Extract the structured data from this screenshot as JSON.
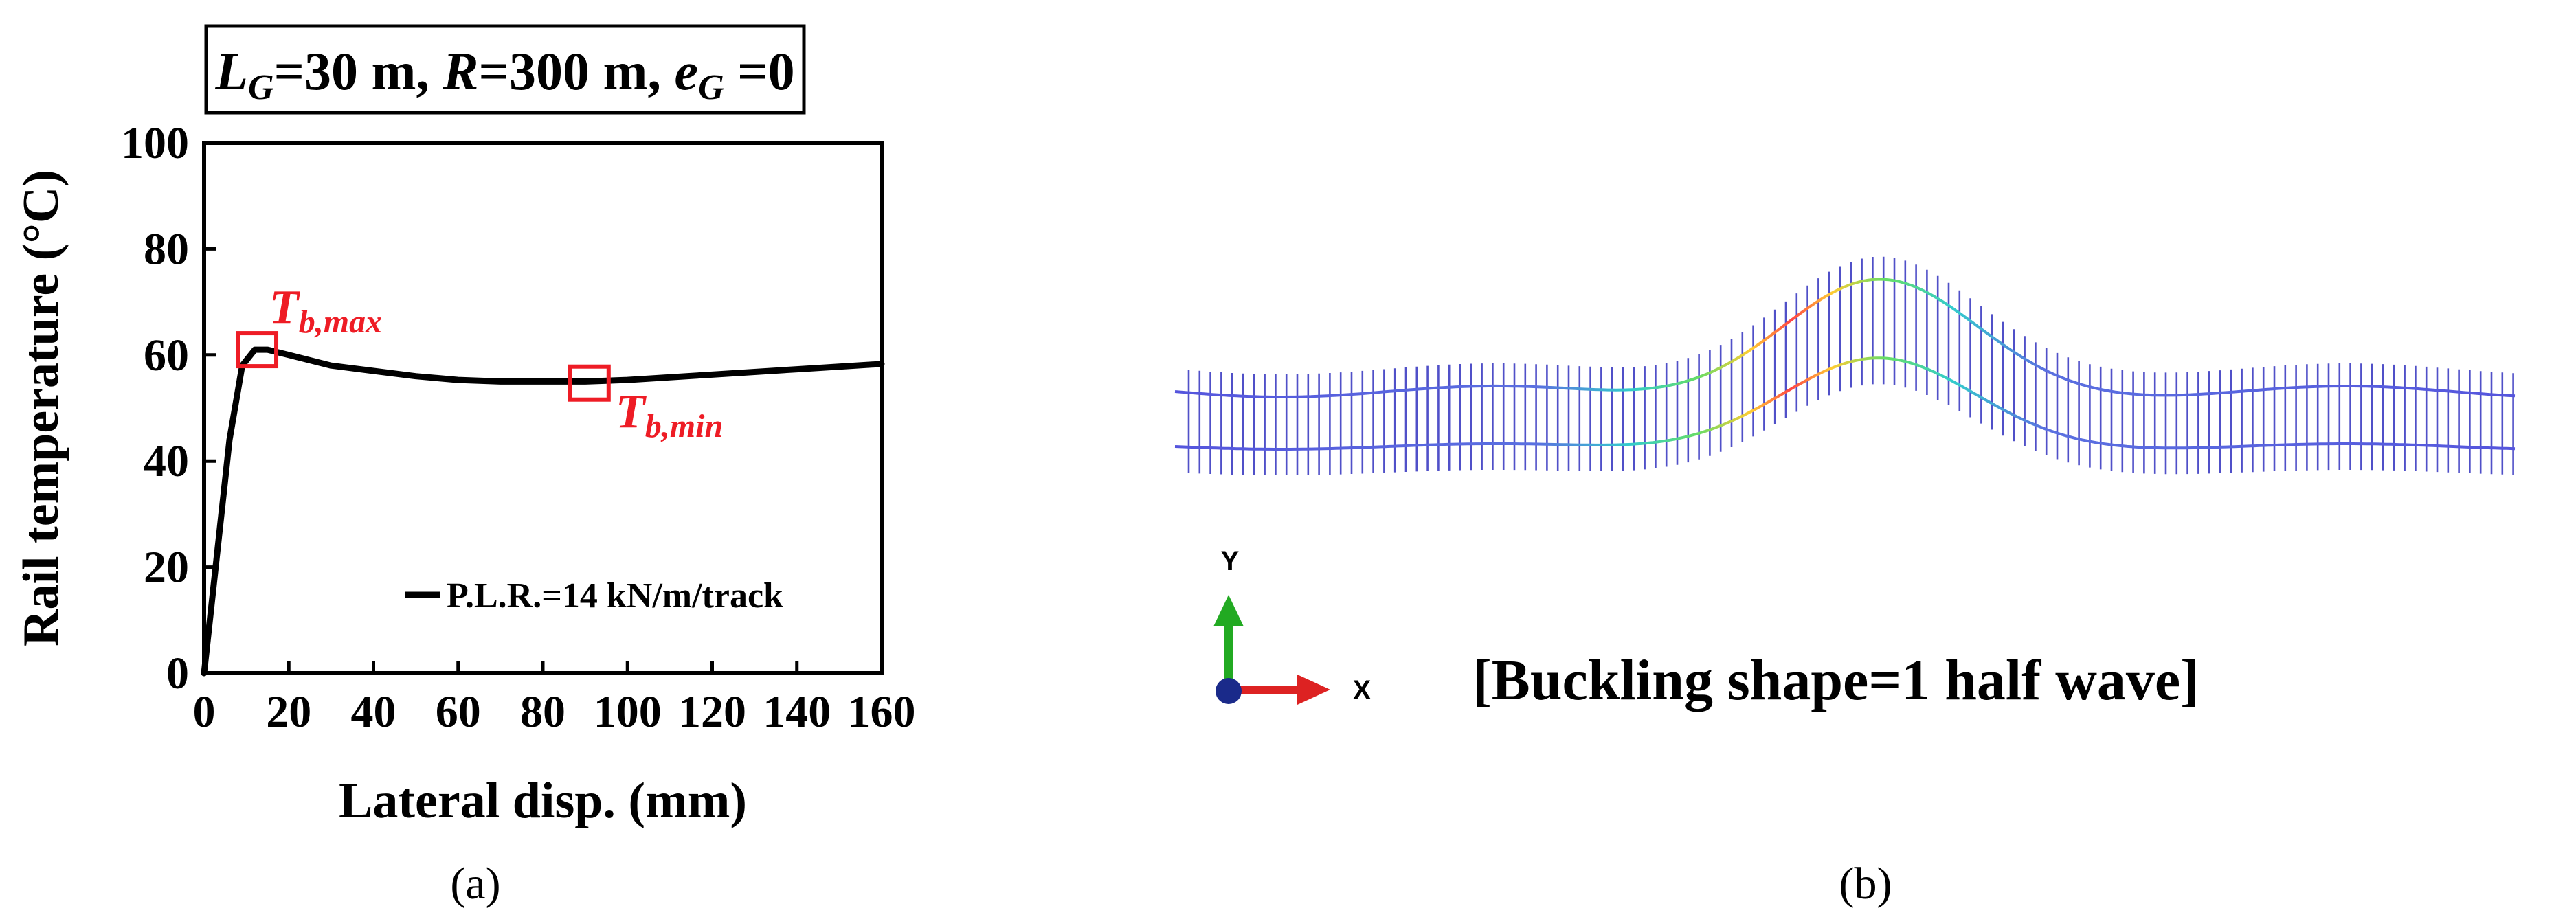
{
  "panel_a": {
    "caption": "(a)",
    "param_box": {
      "lg_base": "L",
      "lg_sub": "G",
      "lg_rest": "=30 m, ",
      "r_base": "R",
      "r_rest": "=300 m, ",
      "eg_base": "e",
      "eg_sub": "G",
      "eg_rest": " =0"
    },
    "annotations": {
      "tbmax_base": "T",
      "tbmax_sub": "b,max",
      "tbmin_base": "T",
      "tbmin_sub": "b,min"
    }
  },
  "chart_data": {
    "type": "line",
    "xlabel": "Lateral disp. (mm)",
    "ylabel": "Rail temperature (°C)",
    "xlim": [
      0,
      160
    ],
    "ylim": [
      0,
      100
    ],
    "x_ticks": [
      0,
      20,
      40,
      60,
      80,
      100,
      120,
      140,
      160
    ],
    "y_ticks": [
      0,
      20,
      40,
      60,
      80,
      100
    ],
    "grid": false,
    "legend_position": "bottom-right",
    "series": [
      {
        "name": "P.L.R.=14 kN/m/track",
        "color": "#000000",
        "x": [
          0,
          3,
          6,
          9,
          12,
          15,
          20,
          25,
          30,
          40,
          50,
          60,
          70,
          80,
          90,
          100,
          110,
          120,
          130,
          140,
          150,
          160
        ],
        "y": [
          0,
          22,
          44,
          58,
          61,
          61,
          60,
          59,
          58,
          57,
          56,
          55.3,
          55,
          55,
          55,
          55.3,
          55.8,
          56.3,
          56.8,
          57.3,
          57.8,
          58.3
        ]
      }
    ],
    "markers": [
      {
        "label": "T_b,max",
        "x": 12.5,
        "y": 61,
        "color": "#ee1c25"
      },
      {
        "label": "T_b,min",
        "x": 91,
        "y": 54.7,
        "color": "#ee1c25"
      }
    ]
  },
  "panel_b": {
    "caption": "(b)",
    "title": "[Buckling shape=1 half wave]",
    "axis_y_label": "Y",
    "axis_x_label": "X",
    "colors": {
      "rail_base": "#5555dd",
      "rail_peak": "#ff4444",
      "sleeper": "#5050c8",
      "axis_y": "#22aa22",
      "axis_x": "#dd2222",
      "origin": "#1a2a8a"
    }
  }
}
